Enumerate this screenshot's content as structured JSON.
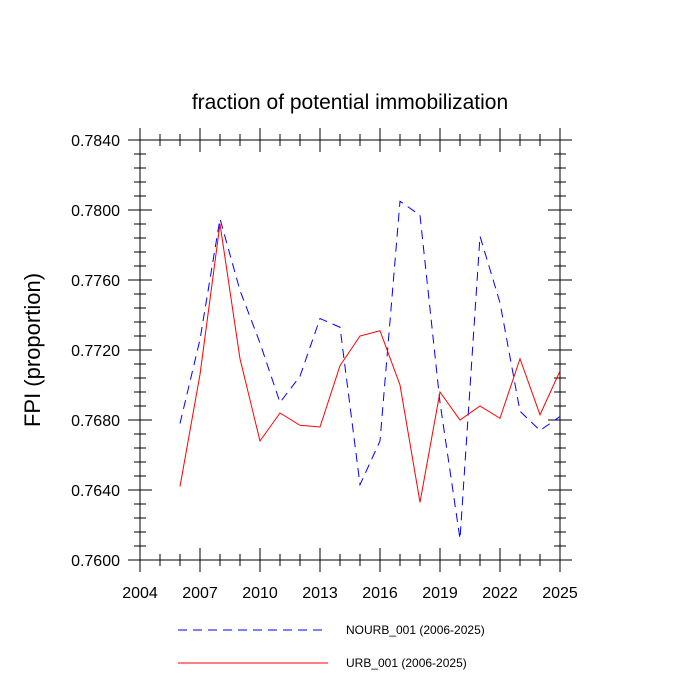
{
  "chart_data": {
    "type": "line",
    "title": "fraction of potential immobilization",
    "xlabel": "",
    "ylabel": "FPI  (proportion)",
    "xlim": [
      2004,
      2025
    ],
    "ylim": [
      0.76,
      0.784
    ],
    "x_ticks": [
      2004,
      2007,
      2010,
      2013,
      2016,
      2019,
      2022,
      2025
    ],
    "x_tick_labels": [
      "2004",
      "2007",
      "2010",
      "2013",
      "2016",
      "2019",
      "2022",
      "2025"
    ],
    "y_ticks": [
      0.76,
      0.764,
      0.768,
      0.772,
      0.776,
      0.78,
      0.784
    ],
    "y_tick_labels": [
      "0.7600",
      "0.7640",
      "0.7680",
      "0.7720",
      "0.7760",
      "0.7800",
      "0.7840"
    ],
    "grid": false,
    "legend_position": "bottom",
    "x": [
      2006,
      2007,
      2008,
      2009,
      2010,
      2011,
      2012,
      2013,
      2014,
      2015,
      2016,
      2017,
      2018,
      2019,
      2020,
      2021,
      2022,
      2023,
      2024,
      2025
    ],
    "series": [
      {
        "name": "NOURB_001 (2006-2025)",
        "color": "#0000ff",
        "style": "dashed",
        "values": [
          0.7678,
          0.7726,
          0.7795,
          0.7754,
          0.7724,
          0.769,
          0.7705,
          0.7738,
          0.7733,
          0.7643,
          0.7668,
          0.7805,
          0.7797,
          0.769,
          0.7612,
          0.7785,
          0.7747,
          0.7685,
          0.7674,
          0.7682
        ]
      },
      {
        "name": "URB_001 (2006-2025)",
        "color": "#ff0000",
        "style": "solid",
        "values": [
          0.7642,
          0.7706,
          0.7792,
          0.7715,
          0.7668,
          0.7684,
          0.7677,
          0.7676,
          0.7711,
          0.7728,
          0.7731,
          0.77,
          0.7633,
          0.7696,
          0.768,
          0.7688,
          0.7681,
          0.7715,
          0.7683,
          0.7708
        ]
      }
    ]
  }
}
